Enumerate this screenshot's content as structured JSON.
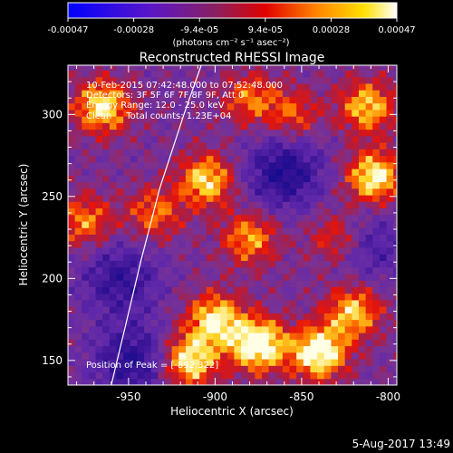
{
  "chart_data": {
    "type": "heatmap",
    "title": "Reconstructed RHESSI Image",
    "xlabel": "Heliocentric X (arcsec)",
    "ylabel": "Heliocentric Y (arcsec)",
    "xlim": [
      -985,
      -795
    ],
    "ylim": [
      135,
      330
    ],
    "xticks": [
      -950,
      -900,
      -850,
      -800
    ],
    "yticks": [
      150,
      200,
      250,
      300
    ],
    "colorbar": {
      "min": -0.00047,
      "max": 0.00047,
      "ticks": [
        "-0.00047",
        "-0.00028",
        "-9.4e-05",
        "9.4e-05",
        "0.00028",
        "0.00047"
      ],
      "unit_label": "(photons cm⁻² s⁻¹ asec⁻²)",
      "colormap": "blue-purple-red-yellow-white"
    },
    "annotations": [
      "10-Feb-2015 07:42:48.000 to 07:52:48.000",
      "Detectors: 3F 5F 6F 7F 8F 9F, Att 0",
      "Energy Range: 12.0 - 25.0 keV",
      "Clean     Total counts: 1.23E+04"
    ],
    "peak_label": "Position of Peak = [-892,322]",
    "peak": {
      "x": -892,
      "y": 322
    },
    "limb_curve": [
      [
        -960,
        135
      ],
      [
        -952,
        170
      ],
      [
        -943,
        210
      ],
      [
        -932,
        255
      ],
      [
        -918,
        300
      ],
      [
        -908,
        330
      ]
    ],
    "hot_regions": [
      {
        "x": -875,
        "y": 160,
        "intensity": 1.0
      },
      {
        "x": -840,
        "y": 155,
        "intensity": 0.95
      },
      {
        "x": -915,
        "y": 150,
        "intensity": 0.85
      },
      {
        "x": -900,
        "y": 175,
        "intensity": 0.8
      },
      {
        "x": -820,
        "y": 180,
        "intensity": 0.7
      },
      {
        "x": -965,
        "y": 305,
        "intensity": 0.8
      },
      {
        "x": -905,
        "y": 260,
        "intensity": 0.75
      },
      {
        "x": -880,
        "y": 225,
        "intensity": 0.6
      },
      {
        "x": -808,
        "y": 262,
        "intensity": 0.85
      },
      {
        "x": -812,
        "y": 305,
        "intensity": 0.7
      },
      {
        "x": -935,
        "y": 240,
        "intensity": 0.5
      },
      {
        "x": -975,
        "y": 235,
        "intensity": 0.55
      },
      {
        "x": -855,
        "y": 300,
        "intensity": 0.45
      },
      {
        "x": -880,
        "y": 310,
        "intensity": 0.5
      },
      {
        "x": -830,
        "y": 225,
        "intensity": 0.45
      }
    ],
    "cold_regions": [
      {
        "x": -860,
        "y": 265,
        "intensity": 0.9
      },
      {
        "x": -955,
        "y": 200,
        "intensity": 0.7
      },
      {
        "x": -948,
        "y": 150,
        "intensity": 0.8
      },
      {
        "x": -810,
        "y": 220,
        "intensity": 0.5
      }
    ]
  },
  "timestamp": "5-Aug-2017 13:49"
}
